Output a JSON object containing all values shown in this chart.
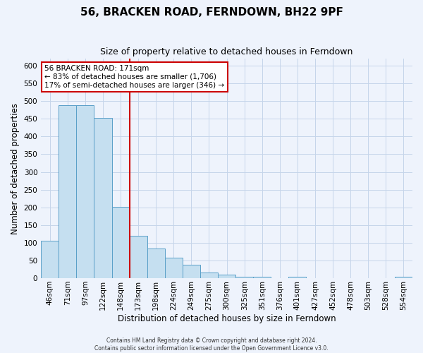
{
  "title": "56, BRACKEN ROAD, FERNDOWN, BH22 9PF",
  "subtitle": "Size of property relative to detached houses in Ferndown",
  "xlabel": "Distribution of detached houses by size in Ferndown",
  "ylabel": "Number of detached properties",
  "footer_line1": "Contains HM Land Registry data © Crown copyright and database right 2024.",
  "footer_line2": "Contains public sector information licensed under the Open Government Licence v3.0.",
  "annotation_line1": "56 BRACKEN ROAD: 171sqm",
  "annotation_line2": "← 83% of detached houses are smaller (1,706)",
  "annotation_line3": "17% of semi-detached houses are larger (346) →",
  "bar_color": "#c5dff0",
  "bar_edge_color": "#5a9fc8",
  "vline_color": "#cc0000",
  "bins": [
    "46sqm",
    "71sqm",
    "97sqm",
    "122sqm",
    "148sqm",
    "173sqm",
    "198sqm",
    "224sqm",
    "249sqm",
    "275sqm",
    "300sqm",
    "325sqm",
    "351sqm",
    "376sqm",
    "401sqm",
    "427sqm",
    "452sqm",
    "478sqm",
    "503sqm",
    "528sqm",
    "554sqm"
  ],
  "counts": [
    105,
    488,
    488,
    452,
    202,
    120,
    83,
    57,
    37,
    16,
    10,
    5,
    5,
    0,
    5,
    0,
    0,
    0,
    0,
    0,
    5
  ],
  "ylim": [
    0,
    620
  ],
  "yticks": [
    0,
    50,
    100,
    150,
    200,
    250,
    300,
    350,
    400,
    450,
    500,
    550,
    600
  ],
  "background_color": "#eef3fc",
  "grid_color": "#c5d5ea",
  "title_fontsize": 11,
  "subtitle_fontsize": 9,
  "axis_label_fontsize": 8.5,
  "tick_fontsize": 7.5
}
